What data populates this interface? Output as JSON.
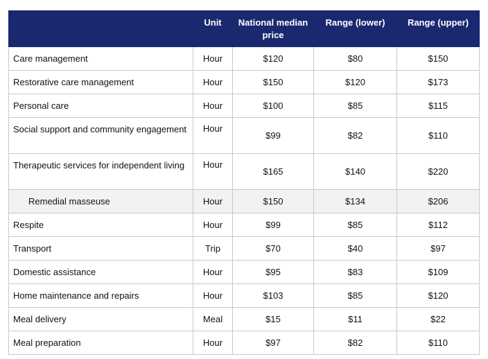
{
  "headers": {
    "service": "",
    "unit": "Unit",
    "median": "National median price",
    "lower": "Range (lower)",
    "upper": "Range (upper)"
  },
  "rows": [
    {
      "service": "Care management",
      "unit": "Hour",
      "median": "$120",
      "lower": "$80",
      "upper": "$150"
    },
    {
      "service": "Restorative care management",
      "unit": "Hour",
      "median": "$150",
      "lower": "$120",
      "upper": "$173"
    },
    {
      "service": "Personal care",
      "unit": "Hour",
      "median": "$100",
      "lower": "$85",
      "upper": "$115"
    },
    {
      "service": "Social support and community engagement",
      "unit": "Hour",
      "median": "$99",
      "lower": "$82",
      "upper": "$110"
    },
    {
      "service": "Therapeutic services for independent living",
      "unit": "Hour",
      "median": "$165",
      "lower": "$140",
      "upper": "$220"
    },
    {
      "service": "Remedial masseuse",
      "unit": "Hour",
      "median": "$150",
      "lower": "$134",
      "upper": "$206"
    },
    {
      "service": "Respite",
      "unit": "Hour",
      "median": "$99",
      "lower": "$85",
      "upper": "$112"
    },
    {
      "service": "Transport",
      "unit": "Trip",
      "median": "$70",
      "lower": "$40",
      "upper": "$97"
    },
    {
      "service": "Domestic assistance",
      "unit": "Hour",
      "median": "$95",
      "lower": "$83",
      "upper": "$109"
    },
    {
      "service": "Home maintenance and repairs",
      "unit": "Hour",
      "median": "$103",
      "lower": "$85",
      "upper": "$120"
    },
    {
      "service": "Meal delivery",
      "unit": "Meal",
      "median": "$15",
      "lower": "$11",
      "upper": "$22"
    },
    {
      "service": "Meal preparation",
      "unit": "Hour",
      "median": "$97",
      "lower": "$82",
      "upper": "$110"
    }
  ],
  "colors": {
    "header_background": "#1a2870",
    "header_text": "#ffffff",
    "subrow_background": "#f2f2f2",
    "grid": "#c8c8c8"
  }
}
